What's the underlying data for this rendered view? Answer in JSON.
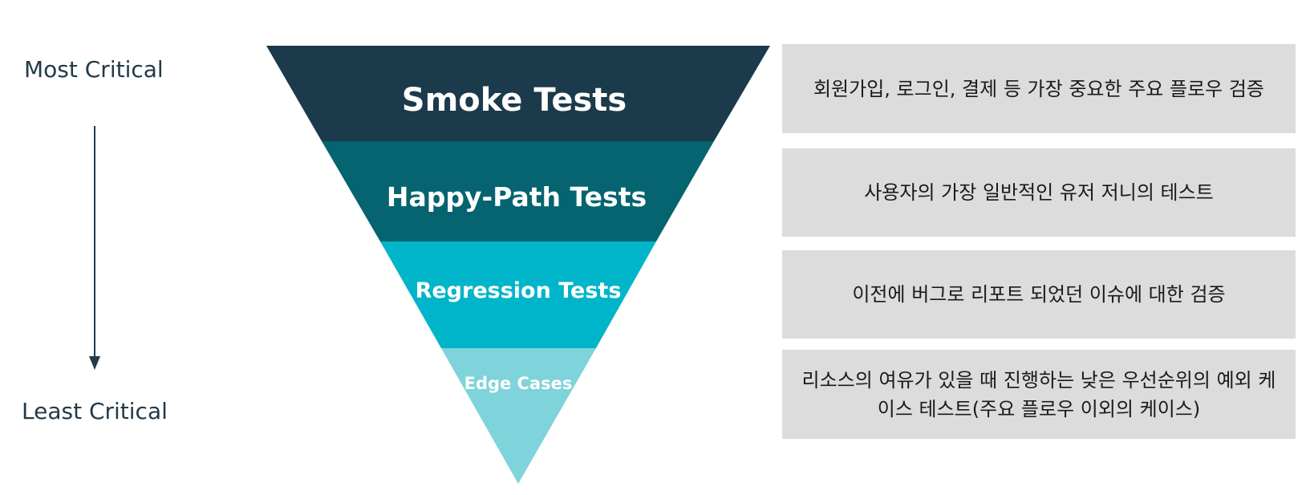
{
  "axis": {
    "top_label": "Most Critical",
    "bottom_label": "Least Critical"
  },
  "tiers": [
    {
      "label": "Smoke Tests",
      "color": "#1b3a4b",
      "description": "회원가입, 로그인, 결제 등 가장 중요한 주요 플로우 검증"
    },
    {
      "label": "Happy-Path Tests",
      "color": "#05646f",
      "description": "사용자의 가장 일반적인 유저 저니의 테스트"
    },
    {
      "label": "Regression Tests",
      "color": "#00b5c9",
      "description": "이전에 버그로 리포트 되었던 이슈에 대한 검증"
    },
    {
      "label": "Edge Cases",
      "color": "#7fd3da",
      "description": "리소스의 여유가 있을 때 진행하는 낮은 우선순위의 예외 케이스 테스트(주요 플로우 이외의 케이스)"
    }
  ]
}
